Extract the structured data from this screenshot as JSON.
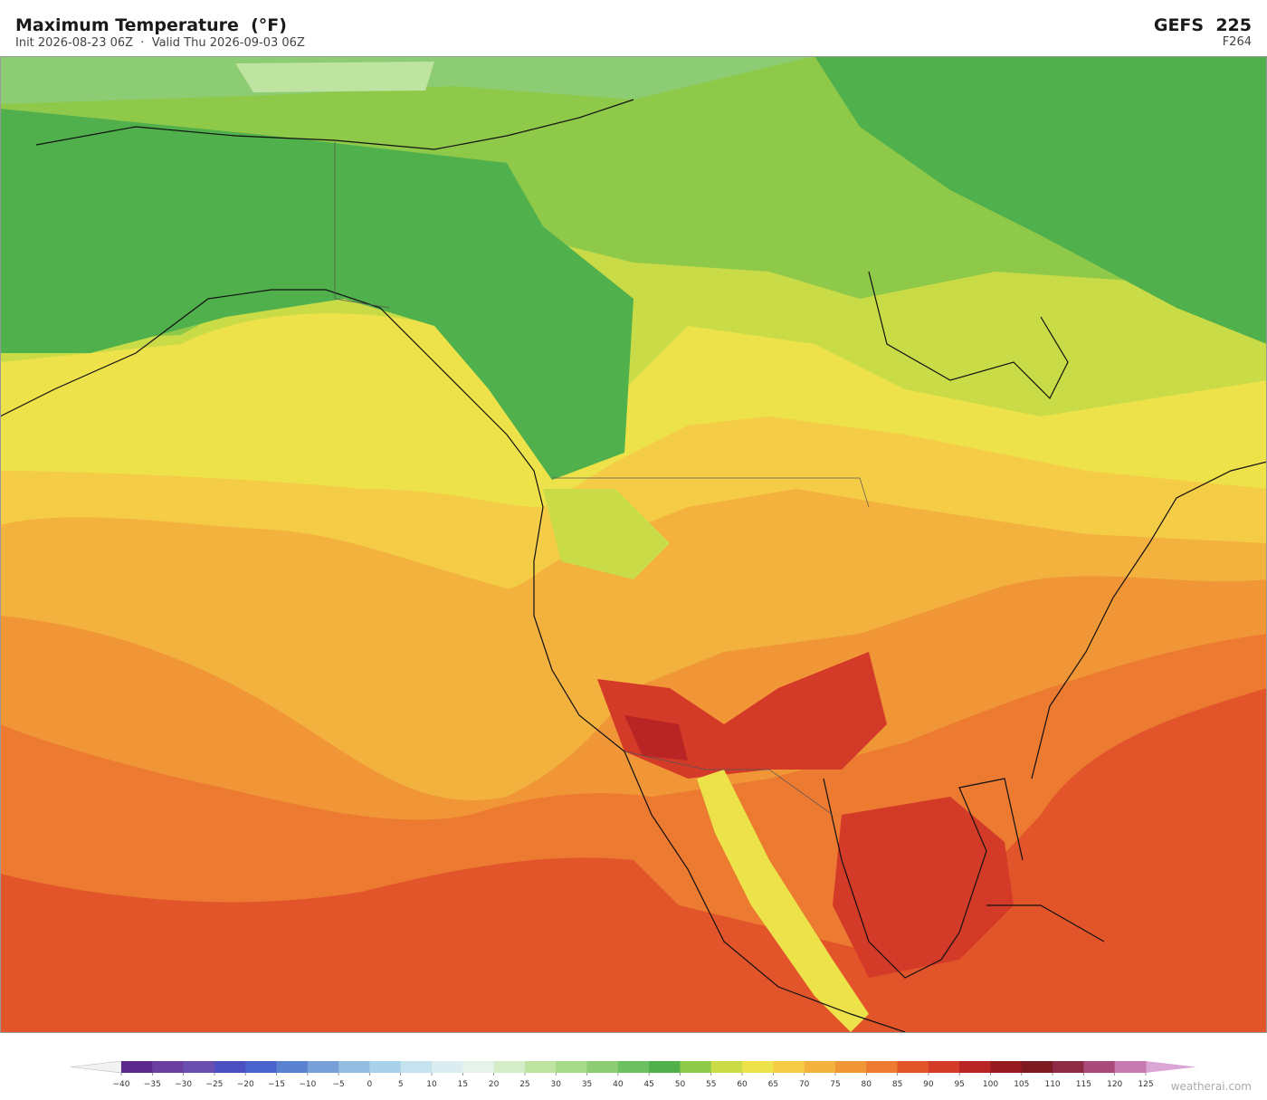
{
  "header": {
    "title": "Maximum Temperature  (°F)",
    "subtitle": "Init 2026-08-23 06Z  ·  Valid Thu 2026-09-03 06Z",
    "model": "GEFS  225",
    "forecast_hour": "F264"
  },
  "colorbar": {
    "ticks": [
      {
        "value": -40,
        "label": "−40"
      },
      {
        "value": -35,
        "label": "−35"
      },
      {
        "value": -30,
        "label": "−30"
      },
      {
        "value": -25,
        "label": "−25"
      },
      {
        "value": -20,
        "label": "−20"
      },
      {
        "value": -15,
        "label": "−15"
      },
      {
        "value": -10,
        "label": "−10"
      },
      {
        "value": -5,
        "label": "−5"
      },
      0,
      5,
      10,
      15,
      20,
      25,
      30,
      35,
      40,
      45,
      50,
      55,
      60,
      65,
      70,
      75,
      80,
      85,
      90,
      95,
      100,
      105,
      110,
      115,
      120,
      125
    ],
    "colors": [
      "#5b2a8c",
      "#6a3fa0",
      "#6a4fb0",
      "#4b4fc0",
      "#4a63cc",
      "#5b82d0",
      "#78a0d8",
      "#92bde0",
      "#a9d2ea",
      "#c4e3ef",
      "#dcedf1",
      "#e6f3ea",
      "#d4ecc8",
      "#bfe3a0",
      "#a6d98a",
      "#8ccc72",
      "#6cc060",
      "#4fb04c",
      "#8fc94a",
      "#c9dc47",
      "#ede24a",
      "#f5cc45",
      "#f3b23e",
      "#f09637",
      "#ec7a31",
      "#e2552b",
      "#d43a28",
      "#b92524",
      "#961b20",
      "#7d1a22",
      "#8e2a45",
      "#a94a7b",
      "#c77aaf"
    ],
    "under_color": "#f2f2f2",
    "over_color": "#dba6d6"
  },
  "footer": {
    "watermark": "weatherai.com"
  }
}
